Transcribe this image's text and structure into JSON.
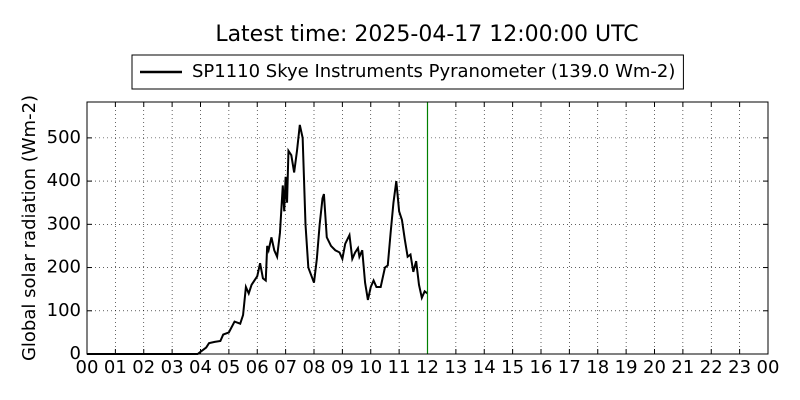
{
  "chart_data": {
    "type": "line",
    "title": "Latest time: 2025-04-17 12:00:00 UTC",
    "ylabel": "Global solar radiation (Wm-2)",
    "x": [
      0,
      3.9,
      4.0,
      4.2,
      4.3,
      4.5,
      4.7,
      4.8,
      5.0,
      5.2,
      5.4,
      5.5,
      5.6,
      5.7,
      5.8,
      6.0,
      6.1,
      6.2,
      6.3,
      6.35,
      6.4,
      6.5,
      6.6,
      6.7,
      6.8,
      6.9,
      6.95,
      7.0,
      7.05,
      7.1,
      7.2,
      7.3,
      7.4,
      7.5,
      7.6,
      7.7,
      7.8,
      8.0,
      8.1,
      8.2,
      8.3,
      8.35,
      8.45,
      8.6,
      8.75,
      8.9,
      9.0,
      9.1,
      9.25,
      9.35,
      9.45,
      9.55,
      9.6,
      9.7,
      9.8,
      9.9,
      10.0,
      10.1,
      10.2,
      10.35,
      10.5,
      10.6,
      10.7,
      10.8,
      10.9,
      11.0,
      11.1,
      11.2,
      11.3,
      11.4,
      11.5,
      11.6,
      11.7,
      11.8,
      11.9,
      12.0
    ],
    "series": [
      {
        "name": "SP1110 Skye Instruments Pyranometer (139.0 Wm-2)",
        "color": "#000000",
        "values": [
          0,
          0,
          5,
          15,
          25,
          28,
          30,
          45,
          50,
          75,
          70,
          90,
          155,
          140,
          160,
          180,
          210,
          175,
          170,
          250,
          240,
          270,
          240,
          225,
          280,
          390,
          330,
          410,
          350,
          470,
          460,
          420,
          470,
          530,
          500,
          300,
          200,
          165,
          220,
          300,
          360,
          370,
          270,
          250,
          240,
          235,
          220,
          255,
          275,
          220,
          235,
          245,
          225,
          240,
          165,
          125,
          155,
          170,
          155,
          155,
          200,
          205,
          280,
          350,
          400,
          330,
          310,
          265,
          225,
          230,
          190,
          215,
          160,
          130,
          145,
          140
        ]
      }
    ],
    "xlim": [
      0,
      24
    ],
    "xticks": [
      {
        "value": 0,
        "label": "00"
      },
      {
        "value": 1,
        "label": "01"
      },
      {
        "value": 2,
        "label": "02"
      },
      {
        "value": 3,
        "label": "03"
      },
      {
        "value": 4,
        "label": "04"
      },
      {
        "value": 5,
        "label": "05"
      },
      {
        "value": 6,
        "label": "06"
      },
      {
        "value": 7,
        "label": "07"
      },
      {
        "value": 8,
        "label": "08"
      },
      {
        "value": 9,
        "label": "09"
      },
      {
        "value": 10,
        "label": "10"
      },
      {
        "value": 11,
        "label": "11"
      },
      {
        "value": 12,
        "label": "12"
      },
      {
        "value": 13,
        "label": "13"
      },
      {
        "value": 14,
        "label": "14"
      },
      {
        "value": 15,
        "label": "15"
      },
      {
        "value": 16,
        "label": "16"
      },
      {
        "value": 17,
        "label": "17"
      },
      {
        "value": 18,
        "label": "18"
      },
      {
        "value": 19,
        "label": "19"
      },
      {
        "value": 20,
        "label": "20"
      },
      {
        "value": 21,
        "label": "21"
      },
      {
        "value": 22,
        "label": "22"
      },
      {
        "value": 23,
        "label": "23"
      },
      {
        "value": 24,
        "label": "00"
      }
    ],
    "ylim": [
      0,
      583
    ],
    "yticks": [
      0,
      100,
      200,
      300,
      400,
      500
    ],
    "grid": true,
    "legend": "top",
    "vline": {
      "x": 12,
      "color": "#008000"
    }
  }
}
